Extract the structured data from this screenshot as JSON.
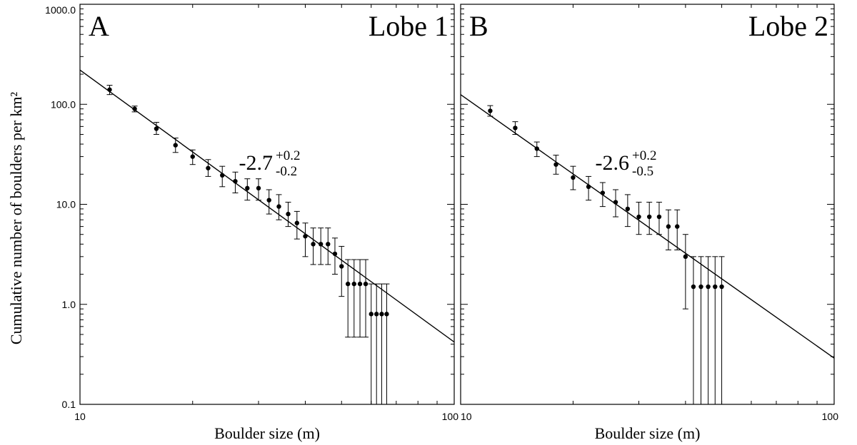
{
  "figure": {
    "ylabel": "Cumulative number of boulders per km²"
  },
  "chart_data": [
    {
      "type": "scatter",
      "panel_letter": "A",
      "title": "Lobe 1",
      "xlabel": "Boulder size (m)",
      "ylabel": "Cumulative number of boulders per km²",
      "x_scale": "log",
      "y_scale": "log",
      "xlim": [
        10,
        100
      ],
      "ylim": [
        0.1,
        1000
      ],
      "x_tick_labels": [
        "10",
        "100"
      ],
      "y_tick_labels": [
        "0.1",
        "1.0",
        "10.0",
        "100.0",
        "1000.0"
      ],
      "grid": false,
      "fit_line": {
        "x": [
          10,
          100
        ],
        "y": [
          220,
          0.42
        ]
      },
      "slope_label": {
        "value": "-2.7",
        "upper": "+0.2",
        "lower": "-0.2"
      },
      "points": [
        {
          "x": 12.0,
          "y": 140,
          "lo": 125,
          "hi": 155
        },
        {
          "x": 14.0,
          "y": 90,
          "lo": 84,
          "hi": 96
        },
        {
          "x": 16.0,
          "y": 57,
          "lo": 50,
          "hi": 66
        },
        {
          "x": 18.0,
          "y": 39,
          "lo": 33,
          "hi": 46
        },
        {
          "x": 20.0,
          "y": 30,
          "lo": 25,
          "hi": 35
        },
        {
          "x": 22.0,
          "y": 23,
          "lo": 19,
          "hi": 28
        },
        {
          "x": 24.0,
          "y": 19.5,
          "lo": 15,
          "hi": 24
        },
        {
          "x": 26.0,
          "y": 17,
          "lo": 13,
          "hi": 21
        },
        {
          "x": 28.0,
          "y": 14.5,
          "lo": 11,
          "hi": 18
        },
        {
          "x": 30.0,
          "y": 14.5,
          "lo": 11,
          "hi": 18
        },
        {
          "x": 32.0,
          "y": 11,
          "lo": 8,
          "hi": 14
        },
        {
          "x": 34.0,
          "y": 9.5,
          "lo": 7,
          "hi": 12.5
        },
        {
          "x": 36.0,
          "y": 8,
          "lo": 6,
          "hi": 10.5
        },
        {
          "x": 38.0,
          "y": 6.5,
          "lo": 4.5,
          "hi": 8.5
        },
        {
          "x": 40.0,
          "y": 4.8,
          "lo": 3,
          "hi": 6.5
        },
        {
          "x": 42.0,
          "y": 4.0,
          "lo": 2.5,
          "hi": 5.8
        },
        {
          "x": 44.0,
          "y": 4.0,
          "lo": 2.5,
          "hi": 5.8
        },
        {
          "x": 46.0,
          "y": 4.0,
          "lo": 2.5,
          "hi": 5.8
        },
        {
          "x": 48.0,
          "y": 3.2,
          "lo": 2,
          "hi": 4.6
        },
        {
          "x": 50.0,
          "y": 2.4,
          "lo": 1.2,
          "hi": 3.8
        },
        {
          "x": 52.0,
          "y": 1.6,
          "lo": 0.47,
          "hi": 2.8
        },
        {
          "x": 54.0,
          "y": 1.6,
          "lo": 0.47,
          "hi": 2.8
        },
        {
          "x": 56.0,
          "y": 1.6,
          "lo": 0.47,
          "hi": 2.8
        },
        {
          "x": 58.0,
          "y": 1.6,
          "lo": 0.47,
          "hi": 2.8
        },
        {
          "x": 60.0,
          "y": 0.8,
          "lo": 0.1,
          "hi": 1.6
        },
        {
          "x": 62.0,
          "y": 0.8,
          "lo": 0.1,
          "hi": 1.6
        },
        {
          "x": 64.0,
          "y": 0.8,
          "lo": 0.1,
          "hi": 1.6
        },
        {
          "x": 66.0,
          "y": 0.8,
          "lo": 0.1,
          "hi": 1.6
        }
      ]
    },
    {
      "type": "scatter",
      "panel_letter": "B",
      "title": "Lobe 2",
      "xlabel": "Boulder size (m)",
      "ylabel": "",
      "x_scale": "log",
      "y_scale": "log",
      "xlim": [
        10,
        100
      ],
      "ylim": [
        0.1,
        1000
      ],
      "x_tick_labels": [
        "10",
        "100"
      ],
      "y_tick_labels": [],
      "grid": false,
      "fit_line": {
        "x": [
          10,
          100
        ],
        "y": [
          125,
          0.29
        ]
      },
      "slope_label": {
        "value": "-2.6",
        "upper": "+0.2",
        "lower": "-0.5"
      },
      "points": [
        {
          "x": 12.0,
          "y": 86,
          "lo": 76,
          "hi": 97
        },
        {
          "x": 14.0,
          "y": 58,
          "lo": 50,
          "hi": 67
        },
        {
          "x": 16.0,
          "y": 36,
          "lo": 30,
          "hi": 42
        },
        {
          "x": 18.0,
          "y": 25,
          "lo": 20,
          "hi": 31
        },
        {
          "x": 20.0,
          "y": 18.5,
          "lo": 14,
          "hi": 24
        },
        {
          "x": 22.0,
          "y": 15,
          "lo": 11,
          "hi": 19
        },
        {
          "x": 24.0,
          "y": 13,
          "lo": 9.5,
          "hi": 16.5
        },
        {
          "x": 26.0,
          "y": 10.5,
          "lo": 7.5,
          "hi": 14
        },
        {
          "x": 28.0,
          "y": 9,
          "lo": 6,
          "hi": 12.5
        },
        {
          "x": 30.0,
          "y": 7.5,
          "lo": 5,
          "hi": 10.5
        },
        {
          "x": 32.0,
          "y": 7.5,
          "lo": 5,
          "hi": 10.5
        },
        {
          "x": 34.0,
          "y": 7.5,
          "lo": 5,
          "hi": 10.5
        },
        {
          "x": 36.0,
          "y": 6,
          "lo": 3.5,
          "hi": 8.8
        },
        {
          "x": 38.0,
          "y": 6,
          "lo": 3.5,
          "hi": 8.8
        },
        {
          "x": 40.0,
          "y": 3,
          "lo": 0.9,
          "hi": 5
        },
        {
          "x": 42.0,
          "y": 1.5,
          "lo": 0.1,
          "hi": 3
        },
        {
          "x": 44.0,
          "y": 1.5,
          "lo": 0.1,
          "hi": 3
        },
        {
          "x": 46.0,
          "y": 1.5,
          "lo": 0.1,
          "hi": 3
        },
        {
          "x": 48.0,
          "y": 1.5,
          "lo": 0.1,
          "hi": 3
        },
        {
          "x": 50.0,
          "y": 1.5,
          "lo": 0.1,
          "hi": 3
        }
      ]
    }
  ]
}
